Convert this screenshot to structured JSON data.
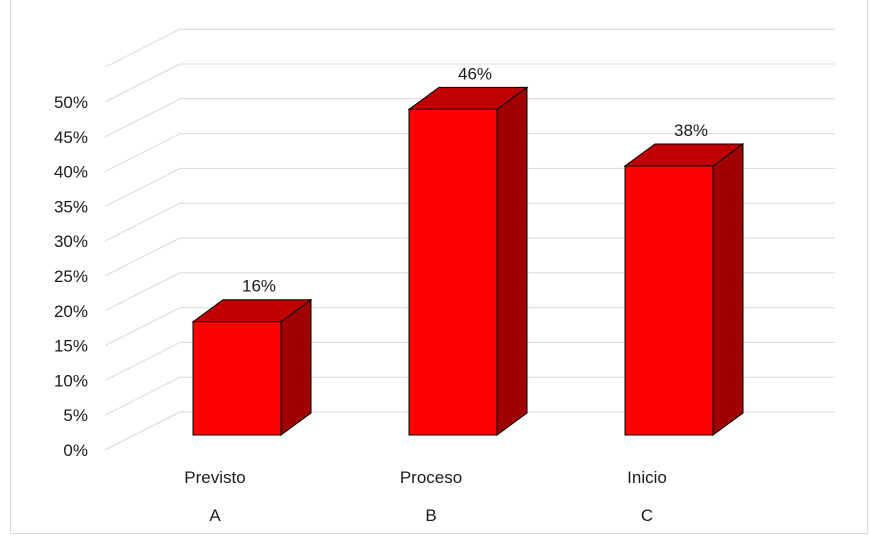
{
  "chart_data": {
    "type": "bar",
    "title": "",
    "xlabel": "",
    "ylabel": "",
    "categories": [
      "Previsto",
      "Proceso",
      "Inicio"
    ],
    "category_letters": [
      "A",
      "B",
      "C"
    ],
    "values": [
      16,
      46,
      38
    ],
    "data_labels": [
      "16%",
      "46%",
      "38%"
    ],
    "y_ticks": [
      "0%",
      "5%",
      "10%",
      "15%",
      "20%",
      "25%",
      "30%",
      "35%",
      "40%",
      "45%",
      "50%"
    ],
    "ylim": [
      0,
      55
    ],
    "grid": true,
    "legend": "none",
    "style": "3d-column"
  },
  "colors": {
    "bar_front": "#ff0000",
    "bar_top": "#c00000",
    "bar_side": "#a00000",
    "grid": "#d9d9d9"
  }
}
